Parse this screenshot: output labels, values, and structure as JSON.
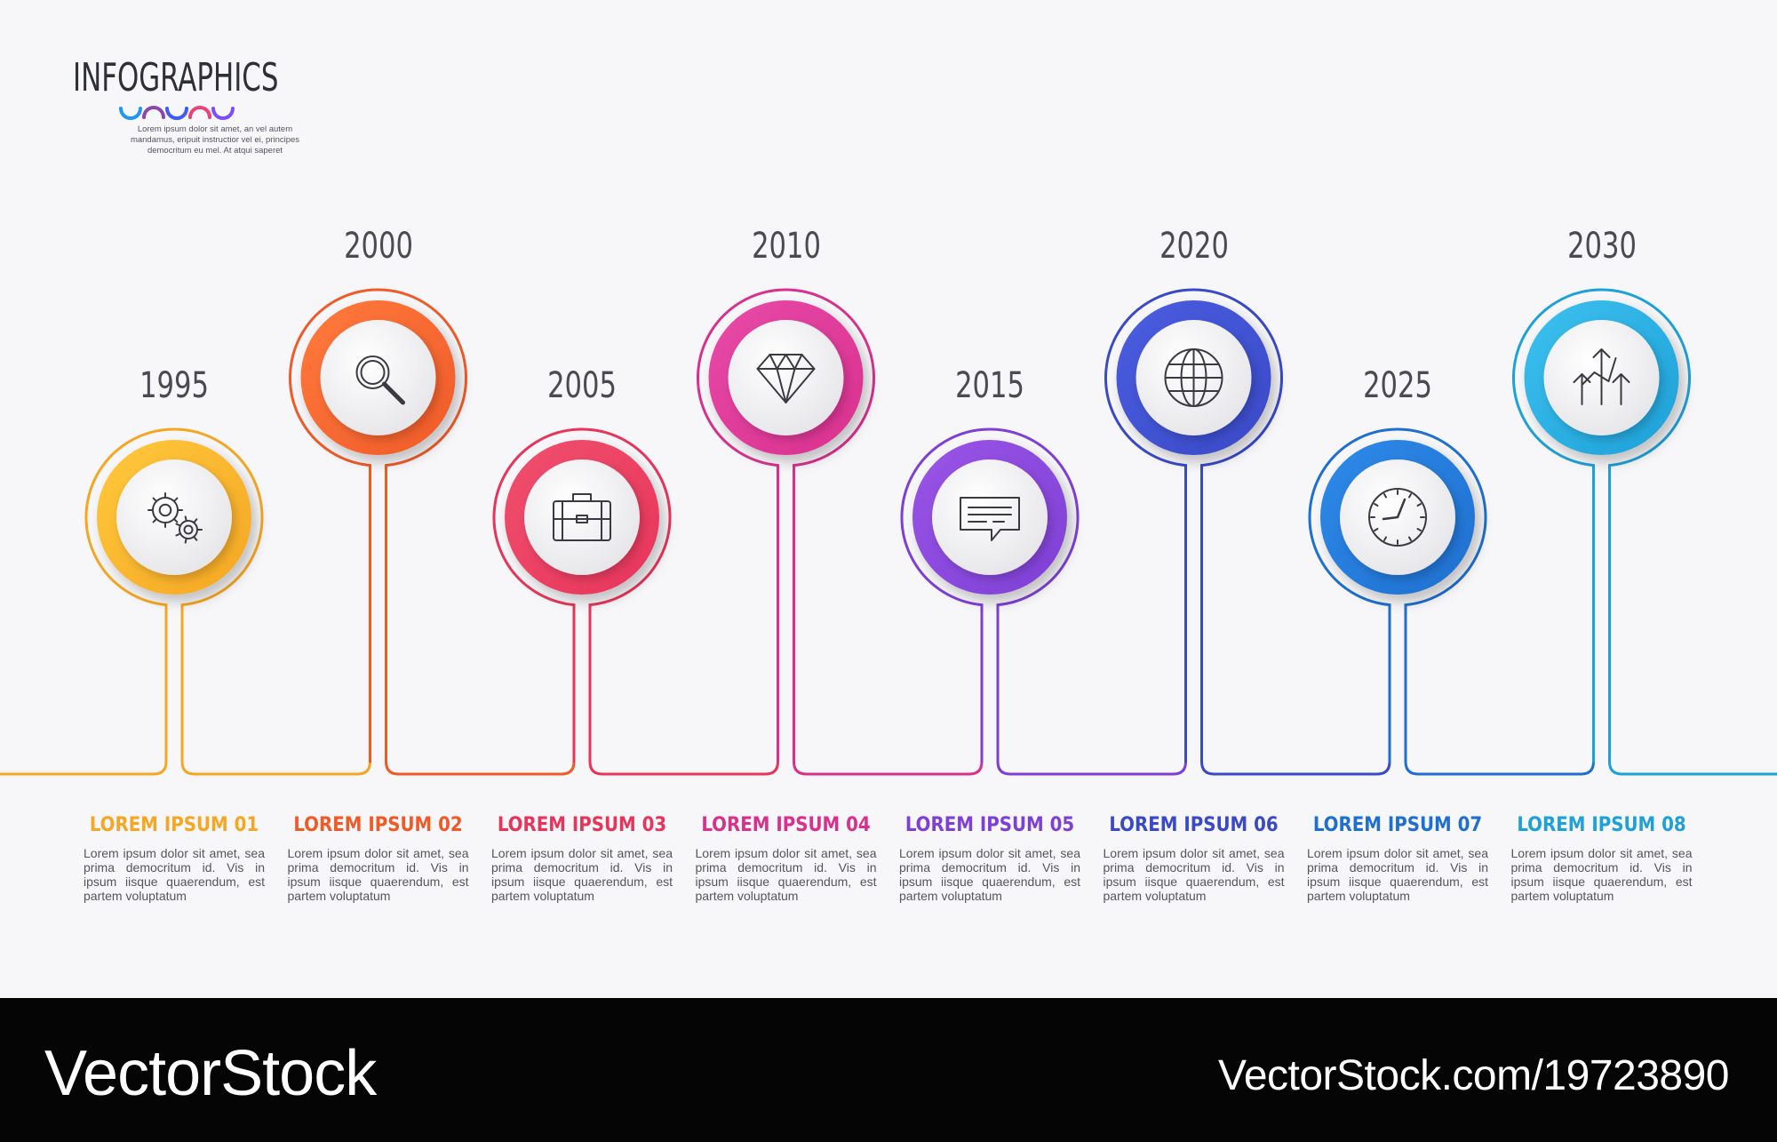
{
  "logo": {
    "title": "INFOGRAPHICS",
    "subtitle_lines": [
      "Lorem ipsum dolor sit amet, an vel autem",
      "mandamus, eripuit instructior vel ei, principes",
      "democritum eu mel. At atqui saperet"
    ],
    "arc_colors": [
      "#2196f3",
      "#8e44ad",
      "#3d5afe",
      "#ec407a",
      "#7c4dff"
    ]
  },
  "steps": [
    {
      "year": "1995",
      "title": "LOREM IPSUM 01",
      "icon": "gears-icon",
      "color": "#f5a623",
      "color2": "#ffc93c",
      "text": "Lorem ipsum dolor sit amet, sea prima democritum id. Vis in ipsum iisque quaerendum, est partem voluptatum"
    },
    {
      "year": "2000",
      "title": "LOREM IPSUM 02",
      "icon": "search-icon",
      "color": "#f05a28",
      "color2": "#ff7a3d",
      "text": "Lorem ipsum dolor sit amet, sea prima democritum id. Vis in ipsum iisque quaerendum, est partem voluptatum"
    },
    {
      "year": "2005",
      "title": "LOREM IPSUM 03",
      "icon": "briefcase-icon",
      "color": "#e8345a",
      "color2": "#f0506e",
      "text": "Lorem ipsum dolor sit amet, sea prima democritum id. Vis in ipsum iisque quaerendum, est partem voluptatum"
    },
    {
      "year": "2010",
      "title": "LOREM IPSUM 04",
      "icon": "diamond-icon",
      "color": "#d9308e",
      "color2": "#e84aa8",
      "text": "Lorem ipsum dolor sit amet, sea prima democritum id. Vis in ipsum iisque quaerendum, est partem voluptatum"
    },
    {
      "year": "2015",
      "title": "LOREM IPSUM 05",
      "icon": "chat-icon",
      "color": "#7e3fd6",
      "color2": "#9a55e6",
      "text": "Lorem ipsum dolor sit amet, sea prima democritum id. Vis in ipsum iisque quaerendum, est partem voluptatum"
    },
    {
      "year": "2020",
      "title": "LOREM IPSUM 06",
      "icon": "globe-icon",
      "color": "#3949c7",
      "color2": "#4a5ee0",
      "text": "Lorem ipsum dolor sit amet, sea prima democritum id. Vis in ipsum iisque quaerendum, est partem voluptatum"
    },
    {
      "year": "2025",
      "title": "LOREM IPSUM 07",
      "icon": "clock-icon",
      "color": "#1e6fd0",
      "color2": "#2f8ae8",
      "text": "Lorem ipsum dolor sit amet, sea prima democritum id. Vis in ipsum iisque quaerendum, est partem voluptatum"
    },
    {
      "year": "2030",
      "title": "LOREM IPSUM 08",
      "icon": "growth-arrows-icon",
      "color": "#1ea0d8",
      "color2": "#3cc1ef",
      "text": "Lorem ipsum dolor sit amet, sea prima democritum id. Vis in ipsum iisque quaerendum, est partem voluptatum"
    }
  ],
  "footer": {
    "brand": "VectorStock",
    "url": "VectorStock.com/19723890"
  }
}
